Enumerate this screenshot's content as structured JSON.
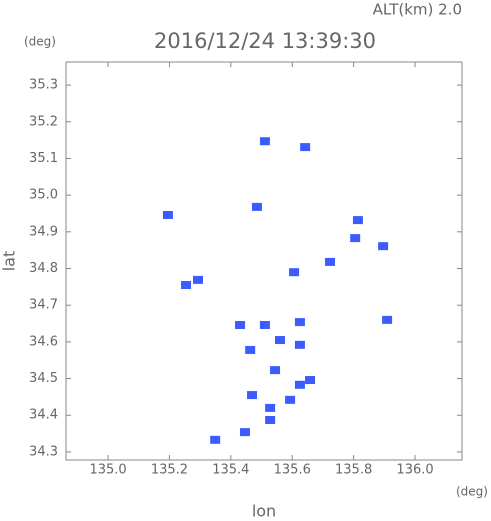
{
  "chart_data": {
    "type": "scatter",
    "title": "2016/12/24 13:39:30",
    "annotation": "ALT(km) 2.0",
    "y_unit": "(deg)",
    "x_unit": "(deg)",
    "xlabel": "lon",
    "ylabel": "lat",
    "color": "#3d5cff",
    "x": [
      135.511,
      135.642,
      135.195,
      135.485,
      135.814,
      135.805,
      135.896,
      135.723,
      135.606,
      135.293,
      135.254,
      135.909,
      135.43,
      135.511,
      135.625,
      135.56,
      135.625,
      135.463,
      135.544,
      135.625,
      135.469,
      135.593,
      135.528,
      135.446,
      135.349,
      135.658,
      135.528
    ],
    "values": [
      35.147,
      35.131,
      34.946,
      34.968,
      34.932,
      34.883,
      34.861,
      34.818,
      34.79,
      34.769,
      34.755,
      34.66,
      34.646,
      34.646,
      34.654,
      34.605,
      34.592,
      34.578,
      34.523,
      34.483,
      34.455,
      34.442,
      34.387,
      34.354,
      34.333,
      34.496,
      34.42
    ],
    "xlim": [
      134.863,
      136.153
    ],
    "ylim": [
      34.278,
      35.363
    ],
    "xticks": [
      {
        "value": 135.0,
        "label": "135.0"
      },
      135.2,
      135.4,
      135.6,
      135.8,
      {
        "value": 136.0,
        "label": "136.0"
      }
    ],
    "yticks": [
      34.3,
      34.4,
      34.5,
      34.6,
      34.7,
      34.8,
      34.9,
      {
        "value": 35.0,
        "label": "35.0"
      },
      35.1,
      35.2,
      35.3
    ]
  }
}
